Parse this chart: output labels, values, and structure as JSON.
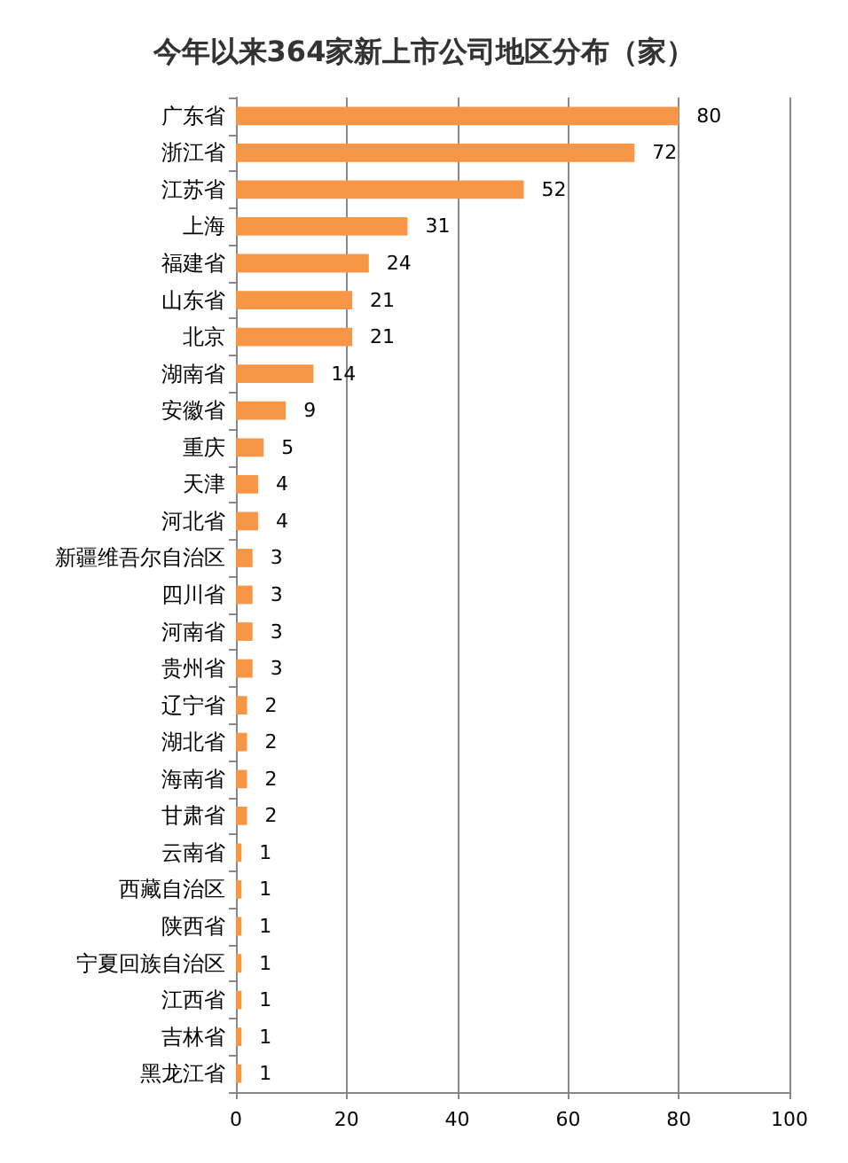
{
  "chart_data": {
    "type": "bar",
    "orientation": "horizontal",
    "title": "今年以来364家新上市公司地区分布（家）",
    "categories": [
      "广东省",
      "浙江省",
      "江苏省",
      "上海",
      "福建省",
      "山东省",
      "北京",
      "湖南省",
      "安徽省",
      "重庆",
      "天津",
      "河北省",
      "新疆维吾尔自治区",
      "四川省",
      "河南省",
      "贵州省",
      "辽宁省",
      "湖北省",
      "海南省",
      "甘肃省",
      "云南省",
      "西藏自治区",
      "陕西省",
      "宁夏回族自治区",
      "江西省",
      "吉林省",
      "黑龙江省"
    ],
    "values": [
      80,
      72,
      52,
      31,
      24,
      21,
      21,
      14,
      9,
      5,
      4,
      4,
      3,
      3,
      3,
      3,
      2,
      2,
      2,
      2,
      1,
      1,
      1,
      1,
      1,
      1,
      1
    ],
    "color": "#f79646",
    "xlim": [
      0,
      100
    ],
    "xticks": [
      0,
      20,
      40,
      60,
      80,
      100
    ],
    "grid": "x",
    "data_labels": true
  }
}
